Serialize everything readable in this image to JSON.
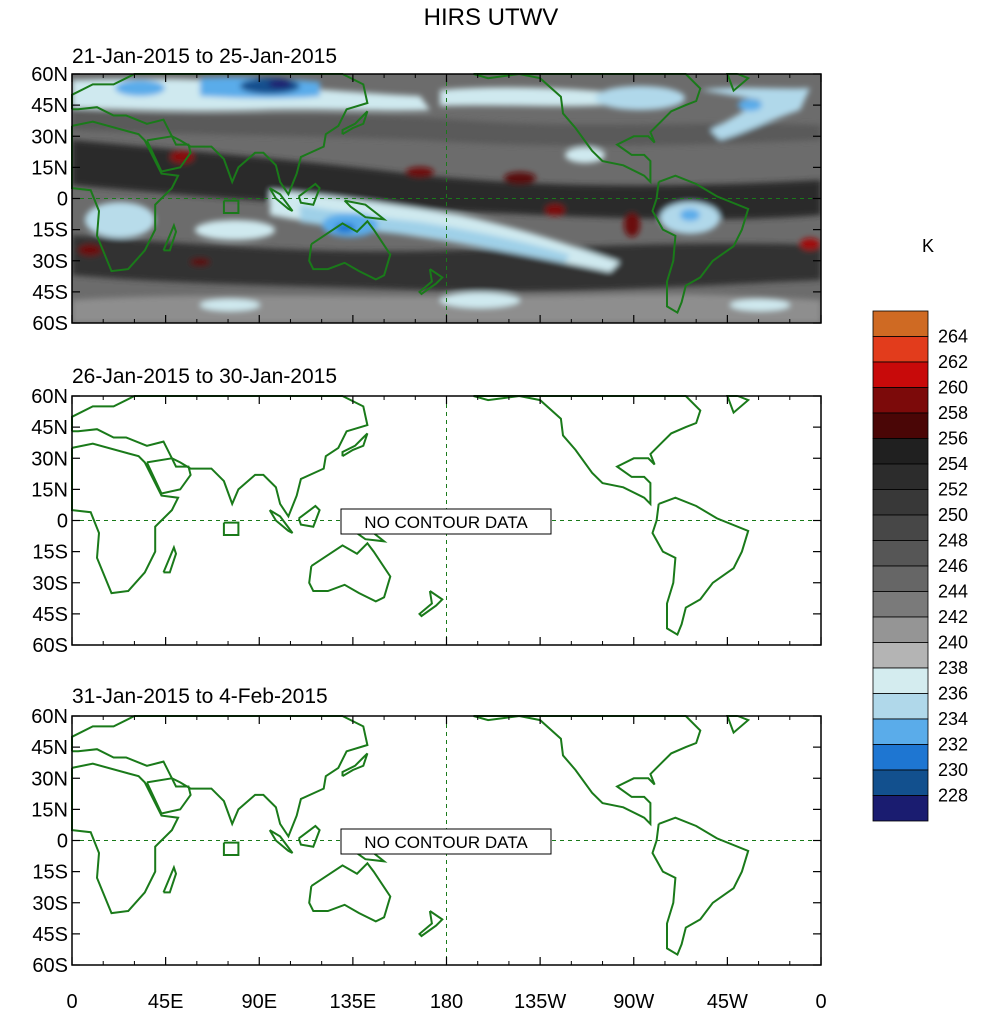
{
  "title": "HIRS UTWV",
  "units": "K",
  "lat_labels": [
    "60N",
    "45N",
    "30N",
    "15N",
    "0",
    "15S",
    "30S",
    "45S",
    "60S"
  ],
  "lon_labels": [
    "0",
    "45E",
    "90E",
    "135E",
    "180",
    "135W",
    "90W",
    "45W",
    "0"
  ],
  "panels": [
    {
      "subtitle": "21-Jan-2015 to 25-Jan-2015",
      "has_data": true,
      "message": ""
    },
    {
      "subtitle": "26-Jan-2015 to 30-Jan-2015",
      "has_data": false,
      "message": "NO CONTOUR DATA"
    },
    {
      "subtitle": "31-Jan-2015 to 4-Feb-2015",
      "has_data": false,
      "message": "NO CONTOUR DATA"
    }
  ],
  "colorbar": {
    "labels": [
      "264",
      "262",
      "260",
      "258",
      "256",
      "254",
      "252",
      "250",
      "248",
      "246",
      "244",
      "242",
      "240",
      "238",
      "236",
      "234",
      "232",
      "230",
      "228"
    ],
    "colors": [
      "#cf6a23",
      "#e23c1c",
      "#c80a0a",
      "#7c0a0a",
      "#4a0606",
      "#202020",
      "#2c2c2c",
      "#383838",
      "#474747",
      "#565656",
      "#666666",
      "#7a7a7a",
      "#959595",
      "#b4b4b4",
      "#d4ecef",
      "#b0d8ea",
      "#5aacea",
      "#1e76d2",
      "#12508e",
      "#1a1c70"
    ]
  },
  "map_colors": {
    "coast": "#1a7a1a",
    "ocean_bg": "#ffffff"
  }
}
